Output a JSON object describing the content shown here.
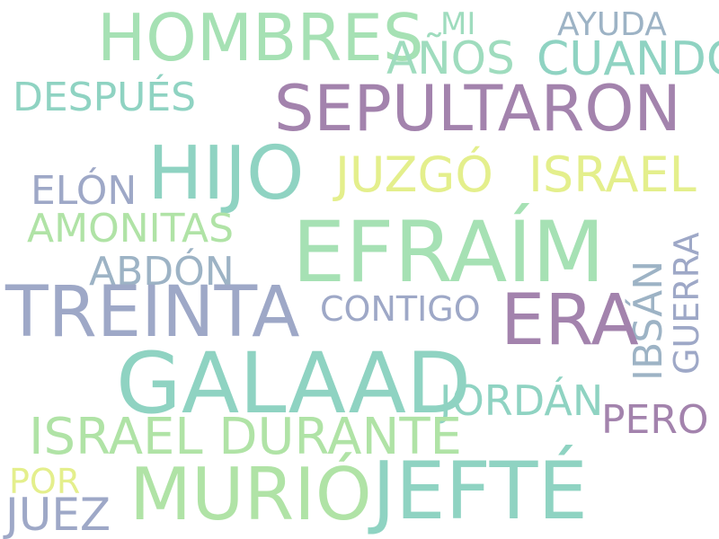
{
  "colors": {
    "mint": "#a6e1b4",
    "teal": "#8fd3c2",
    "seafoam": "#9fdcbe",
    "purple": "#a383ad",
    "slate": "#9ea8c7",
    "steel": "#9db3c5",
    "yellow": "#e4ef8c",
    "green": "#b0e3a6"
  },
  "words": {
    "hombres": "HOMBRES",
    "mi": "MI",
    "ayuda": "AYUDA",
    "anos": "AÑOS",
    "cuando": "CUANDO",
    "despues": "DESPUÉS",
    "sepultaron": "SEPULTARON",
    "hijo": "HIJO",
    "juzgo": "JUZGÓ",
    "israel": "ISRAEL",
    "elon": "ELÓN",
    "amonitas": "AMONITAS",
    "efraim": "EFRAÍM",
    "abdon": "ABDÓN",
    "ibsan": "IBSÁN",
    "guerra": "GUERRA",
    "treinta": "TREINTA",
    "contigo": "CONTIGO",
    "era": "ERA",
    "galaad": "GALAAD",
    "jordan": "JORDÁN",
    "pero": "PERO",
    "israel_durante": "ISRAEL DURANTE",
    "murio": "MURIÓ",
    "jefte": "JEFTÉ",
    "por": "POR",
    "juez": "JUEZ"
  }
}
